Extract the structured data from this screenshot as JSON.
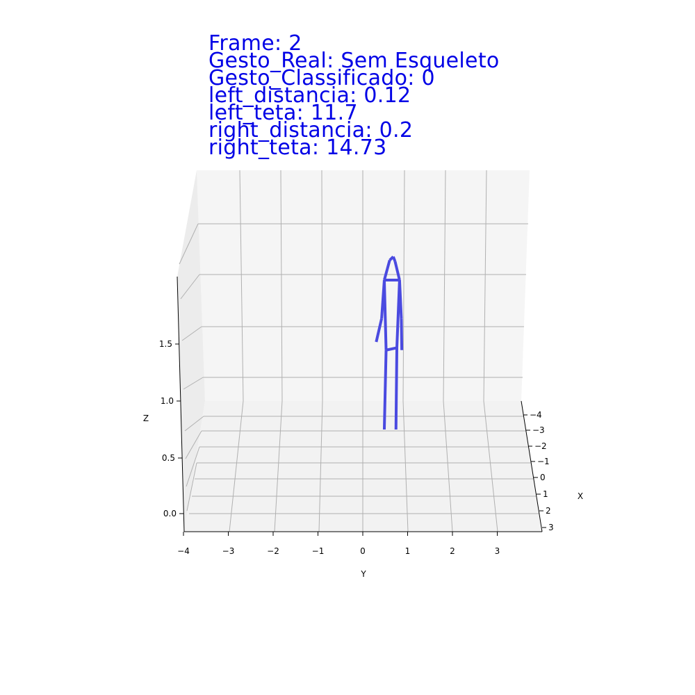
{
  "overlay": {
    "frame": "Frame: 2",
    "gesto_real": "Gesto_Real: Sem Esqueleto",
    "gesto_classificado": "Gesto_Classificado: 0",
    "left_distancia": "left_distancia: 0.12",
    "left_teta": "left_teta: 11.7",
    "right_distancia": "right_distancia: 0.2",
    "right_teta": "right_teta: 14.73"
  },
  "colors": {
    "overlay_text": "#0000e6",
    "skeleton": "#4a4ae0",
    "pane": "#f5f5f5",
    "grid": "#b0b0b0"
  },
  "chart_data": {
    "type": "3d-line",
    "xlabel": "X",
    "ylabel": "Y",
    "zlabel": "Z",
    "x_ticks": [
      "−4",
      "−3",
      "−2",
      "−1",
      "0",
      "1",
      "2",
      "3"
    ],
    "y_ticks": [
      "−4",
      "−3",
      "−2",
      "−1",
      "0",
      "1",
      "2",
      "3"
    ],
    "z_ticks": [
      "0.0",
      "0.5",
      "1.0",
      "1.5"
    ],
    "grid": true,
    "series": [
      {
        "segments": [
          [
            [
              0.6,
              1.95
            ],
            [
              0.68,
              1.98
            ]
          ],
          [
            [
              0.68,
              1.98
            ],
            [
              0.72,
              1.94
            ]
          ],
          [
            [
              0.6,
              1.95
            ],
            [
              0.48,
              1.78
            ]
          ],
          [
            [
              0.72,
              1.94
            ],
            [
              0.82,
              1.78
            ]
          ],
          [
            [
              0.48,
              1.78
            ],
            [
              0.82,
              1.78
            ]
          ],
          [
            [
              0.48,
              1.78
            ],
            [
              0.42,
              1.45
            ]
          ],
          [
            [
              0.42,
              1.45
            ],
            [
              0.3,
              1.25
            ]
          ],
          [
            [
              0.82,
              1.78
            ],
            [
              0.86,
              1.45
            ]
          ],
          [
            [
              0.86,
              1.45
            ],
            [
              0.87,
              1.18
            ]
          ],
          [
            [
              0.48,
              1.78
            ],
            [
              0.52,
              1.18
            ]
          ],
          [
            [
              0.82,
              1.78
            ],
            [
              0.76,
              1.2
            ]
          ],
          [
            [
              0.52,
              1.18
            ],
            [
              0.76,
              1.2
            ]
          ],
          [
            [
              0.52,
              1.18
            ],
            [
              0.48,
              0.5
            ]
          ],
          [
            [
              0.76,
              1.2
            ],
            [
              0.74,
              0.5
            ]
          ]
        ]
      }
    ]
  }
}
